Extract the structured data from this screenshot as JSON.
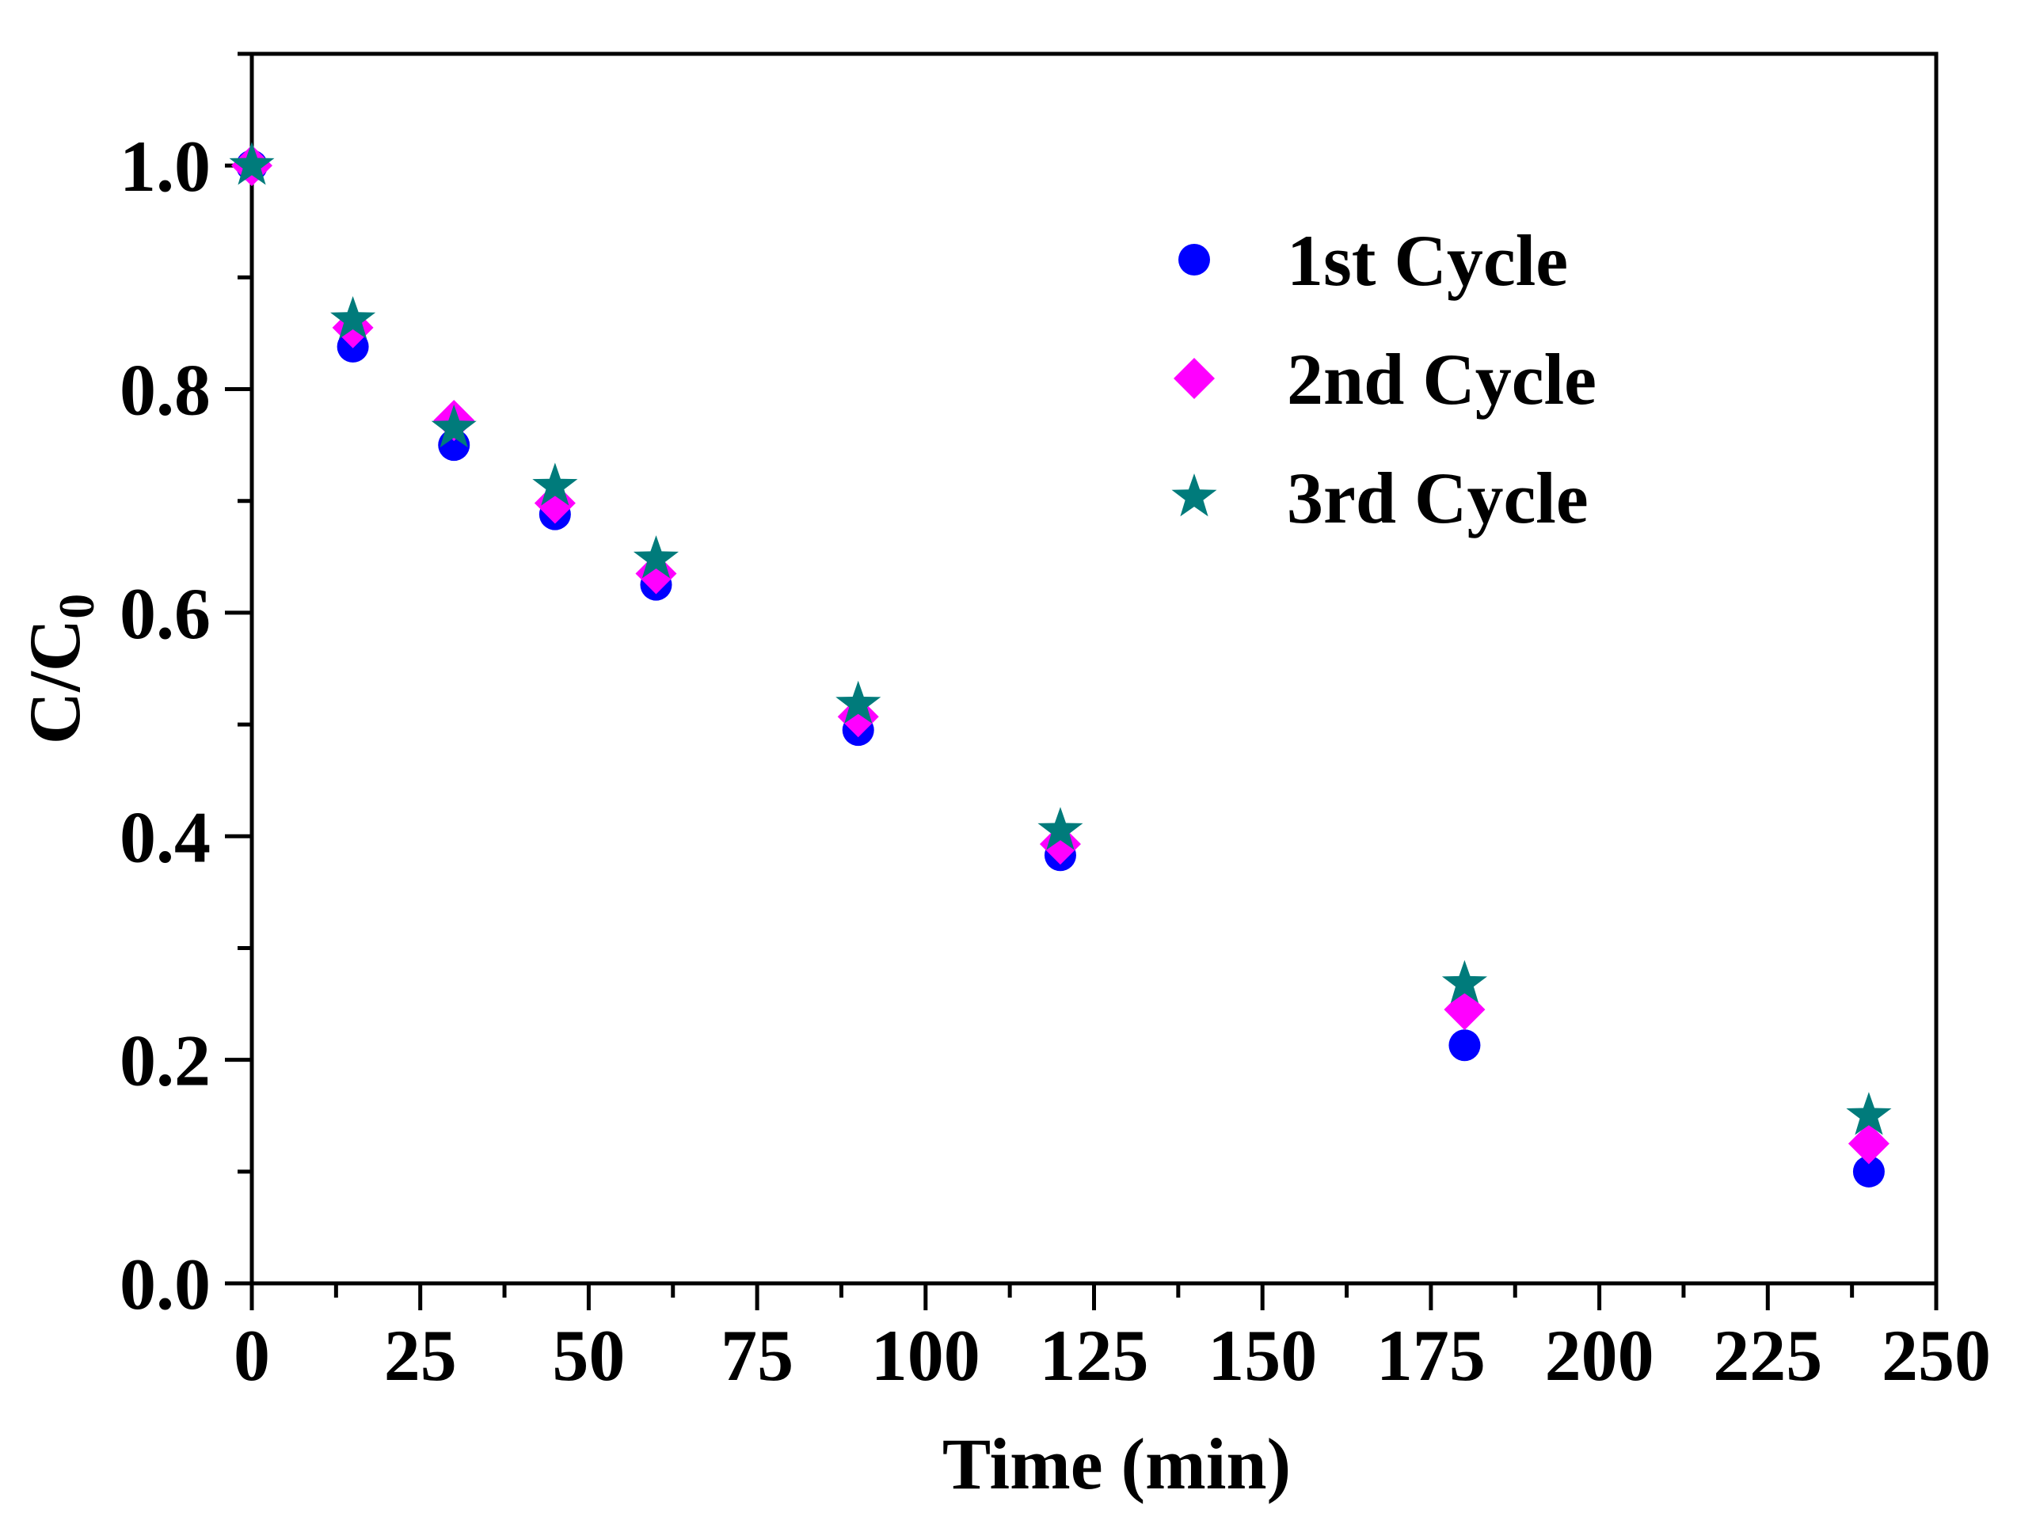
{
  "chart_data": {
    "type": "scatter",
    "title": "",
    "xlabel": "Time (min)",
    "ylabel": "C/C",
    "ylabel_subscript": "0",
    "xlim": [
      0,
      250
    ],
    "ylim": [
      0,
      1.1
    ],
    "x_ticks": [
      0,
      25,
      50,
      75,
      100,
      125,
      150,
      175,
      200,
      225,
      250
    ],
    "x_tick_labels": [
      "0",
      "25",
      "50",
      "75",
      "100",
      "125",
      "150",
      "175",
      "200",
      "225",
      "250"
    ],
    "y_ticks": [
      0,
      0.2,
      0.4,
      0.6,
      0.8,
      1.0
    ],
    "y_tick_labels": [
      "0.0",
      "0.2",
      "0.4",
      "0.6",
      "0.8",
      "1.0"
    ],
    "grid": false,
    "legend_position": "top-right",
    "series": [
      {
        "name": "1st Cycle",
        "marker": "circle",
        "color": "#0000ff",
        "x": [
          0,
          15,
          30,
          45,
          60,
          90,
          120,
          180,
          240
        ],
        "y": [
          1.0,
          0.838,
          0.75,
          0.688,
          0.625,
          0.495,
          0.383,
          0.213,
          0.1
        ]
      },
      {
        "name": "2nd Cycle",
        "marker": "diamond",
        "color": "#ff00ff",
        "x": [
          0,
          15,
          30,
          45,
          60,
          90,
          120,
          180,
          240
        ],
        "y": [
          1.0,
          0.855,
          0.772,
          0.698,
          0.635,
          0.507,
          0.393,
          0.245,
          0.125
        ]
      },
      {
        "name": "3rd Cycle",
        "marker": "star",
        "color": "#007b7b",
        "x": [
          0,
          15,
          30,
          45,
          60,
          90,
          120,
          180,
          240
        ],
        "y": [
          1.0,
          0.862,
          0.765,
          0.713,
          0.648,
          0.518,
          0.405,
          0.268,
          0.15
        ]
      }
    ]
  }
}
